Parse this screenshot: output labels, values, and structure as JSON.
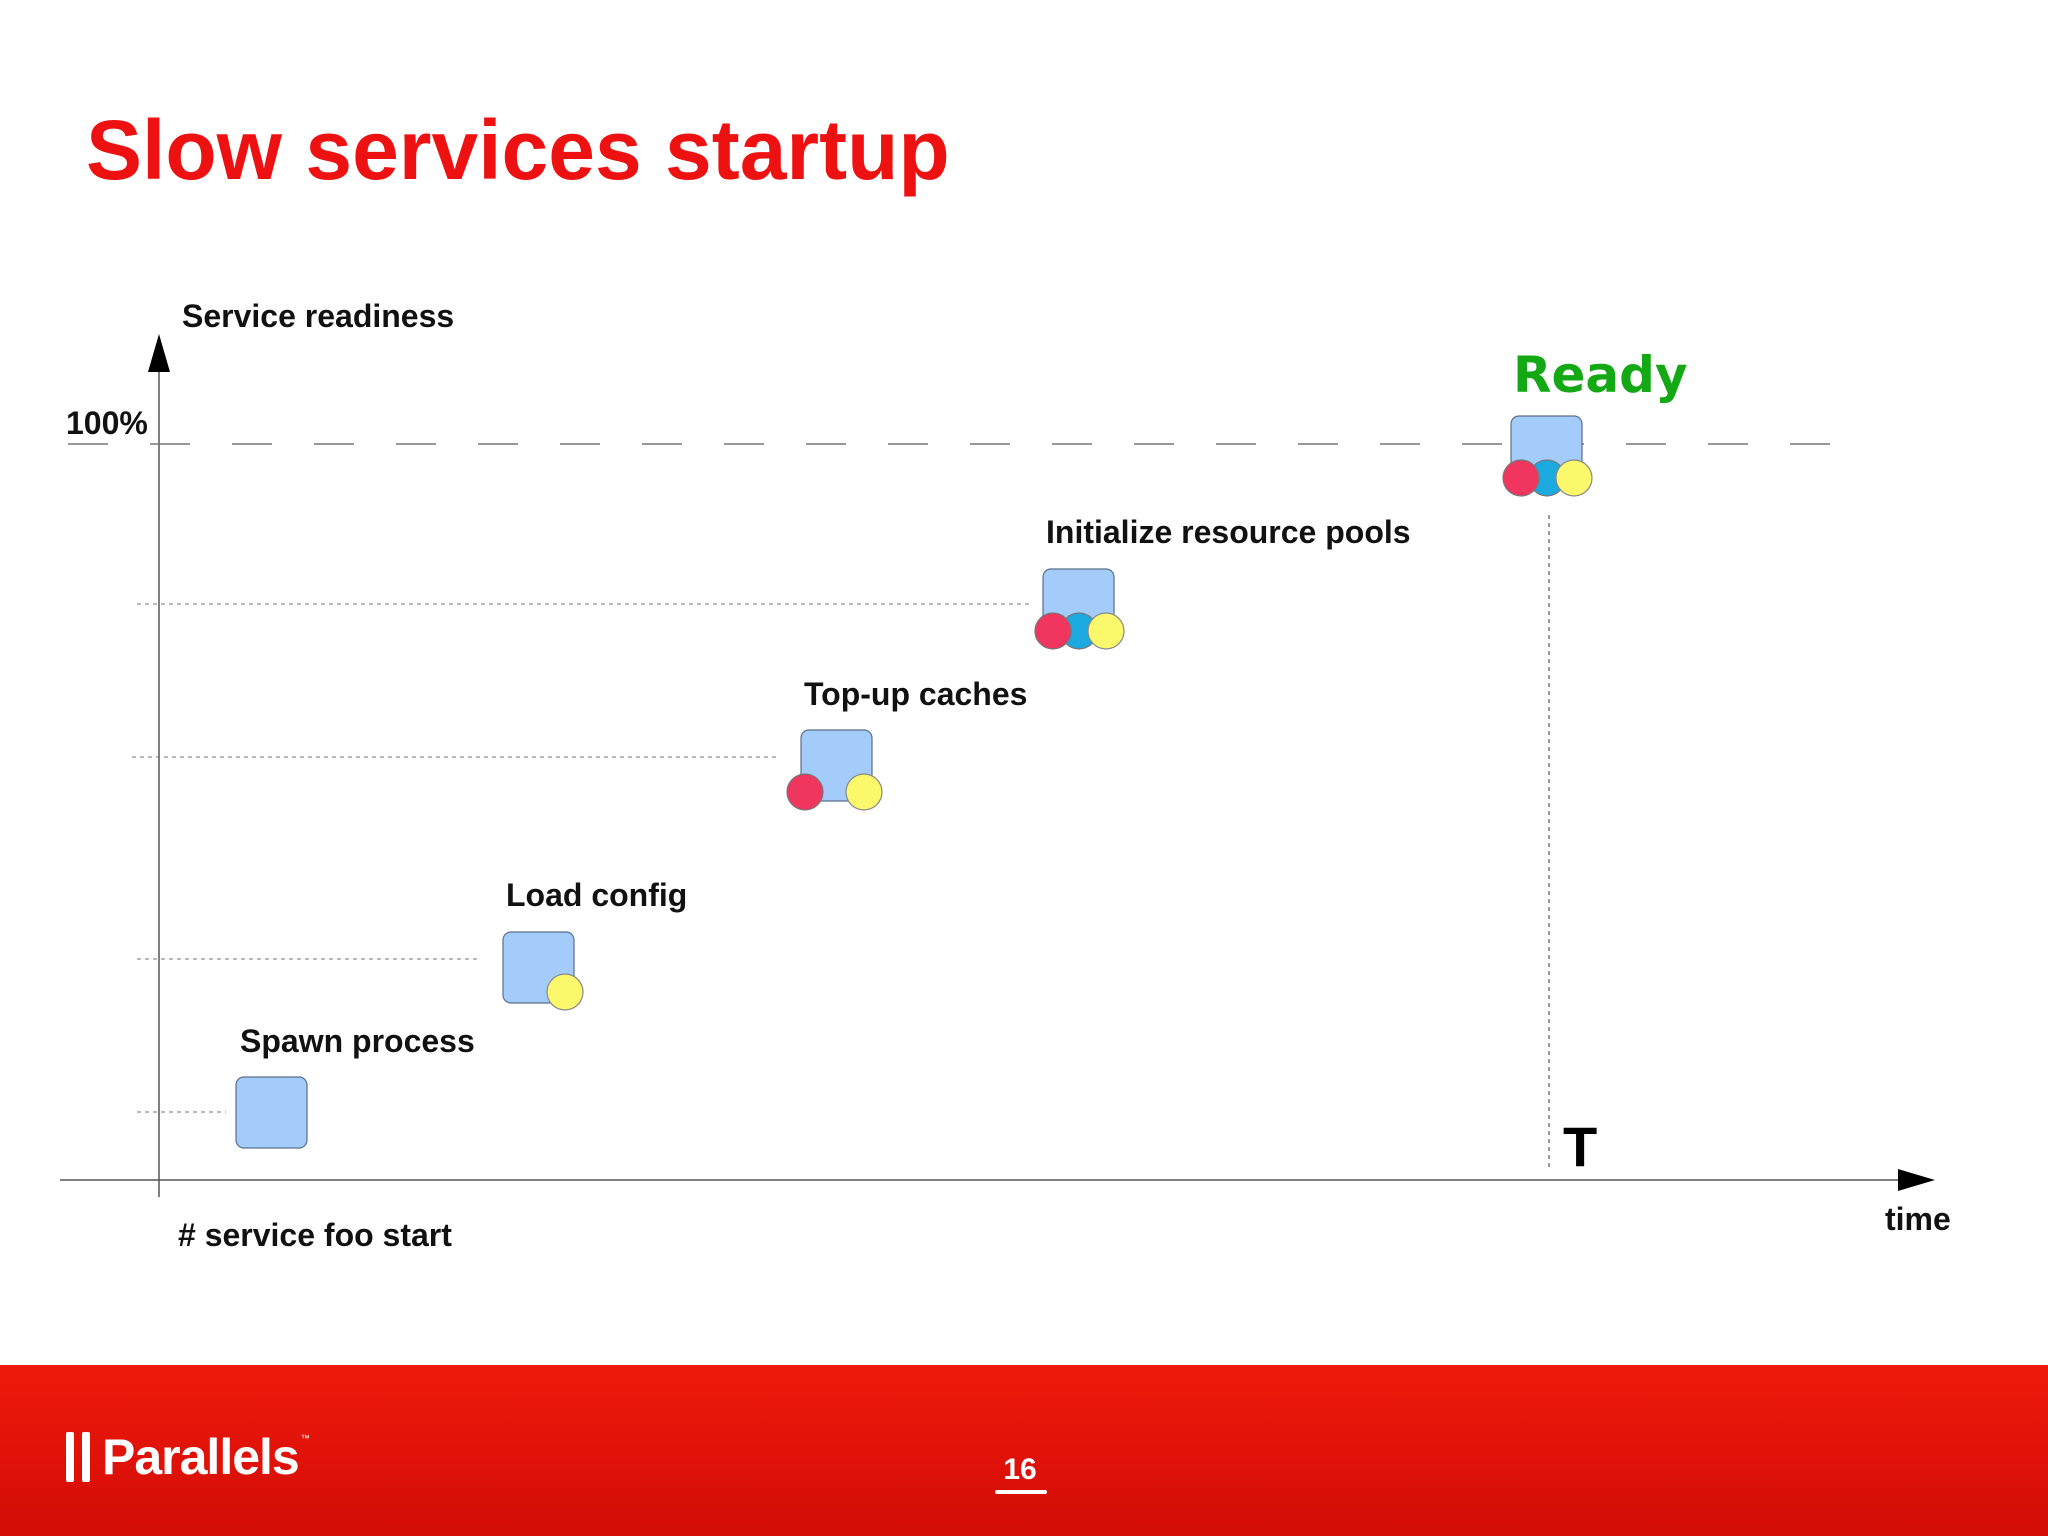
{
  "slide": {
    "title": "Slow services startup",
    "page_number": "16",
    "logo_text": "Parallels",
    "logo_tm": "™"
  },
  "diagram": {
    "y_axis_label": "Service readiness",
    "x_axis_label": "time",
    "origin_label": "# service foo start",
    "full_level_label": "100%",
    "ready_label": "Ready",
    "time_marker_label": "T",
    "colors": {
      "title": "#ee1111",
      "ready": "#14a814",
      "box": "#a3ccfb",
      "red_dot": "#f0365e",
      "cyan_dot": "#1ba9e0",
      "yellow_dot": "#fbf86c",
      "footer": "#e2130b"
    },
    "stages": [
      {
        "name": "spawn-process",
        "label": "Spawn process",
        "dots": []
      },
      {
        "name": "load-config",
        "label": "Load config",
        "dots": [
          "yellow"
        ]
      },
      {
        "name": "top-up-caches",
        "label": "Top-up caches",
        "dots": [
          "red",
          "yellow"
        ]
      },
      {
        "name": "initialize-resource-pools",
        "label": "Initialize resource pools",
        "dots": [
          "red",
          "cyan",
          "yellow"
        ]
      },
      {
        "name": "ready",
        "label": "",
        "dots": [
          "red",
          "cyan",
          "yellow"
        ]
      }
    ]
  }
}
